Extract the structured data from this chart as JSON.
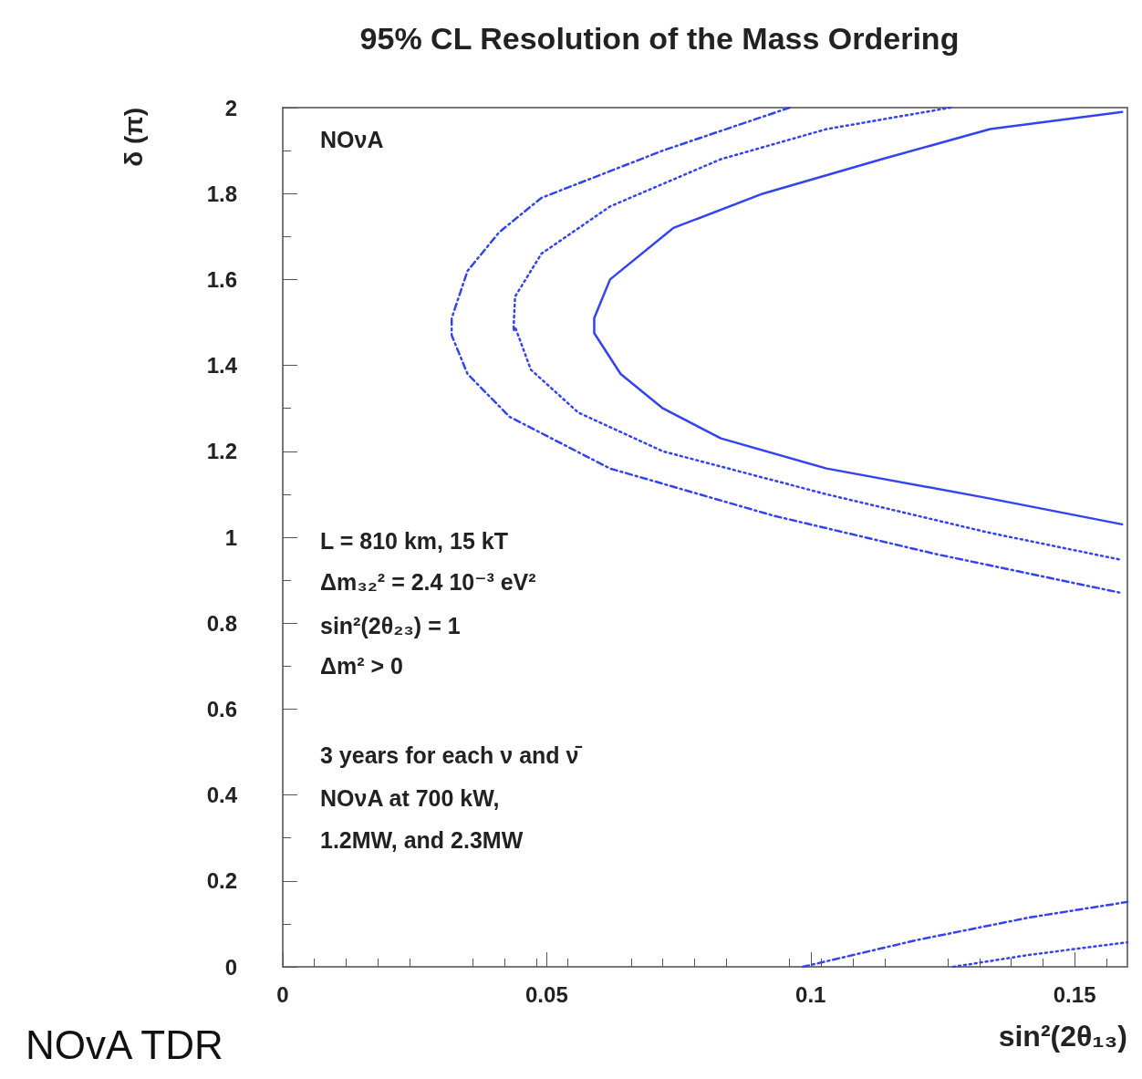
{
  "chart_data": {
    "type": "line",
    "title": "95% CL Resolution of the Mass Ordering",
    "xlabel": "sin²(2θ₁₃)",
    "ylabel": "δ (π)",
    "xlim": [
      0,
      0.16
    ],
    "xticks": [
      0,
      0.05,
      0.1,
      0.15
    ],
    "ylim": [
      0,
      2
    ],
    "yticks": [
      0,
      0.2,
      0.4,
      0.6,
      0.8,
      1,
      1.2,
      1.4,
      1.6,
      1.8,
      2
    ],
    "grid": false,
    "marker": "none",
    "annotations": [
      "NOνA",
      "L = 810 km, 15 kT",
      "Δm₃₂² = 2.4 10⁻³ eV²",
      "sin²(2θ₂₃) = 1",
      "Δm² > 0",
      "3 years for each ν and ν̄",
      "NOνA at 700 kW,",
      "1.2MW, and 2.3MW",
      "NOvA TDR"
    ],
    "series": [
      {
        "color": "#3344ee",
        "line_style": "solid",
        "x": [
          0.159,
          0.134,
          0.1135,
          0.091,
          0.074,
          0.062,
          0.059,
          0.059,
          0.064,
          0.072,
          0.083,
          0.103,
          0.134,
          0.159
        ],
        "values": [
          1.99,
          1.95,
          1.88,
          1.8,
          1.72,
          1.6,
          1.51,
          1.475,
          1.38,
          1.3,
          1.23,
          1.16,
          1.09,
          1.03
        ]
      },
      {
        "color": "#3344ee",
        "line_style": "dotted",
        "x": [
          0.1265,
          0.103,
          0.083,
          0.062,
          0.049,
          0.044,
          0.0437,
          0.044,
          0.047,
          0.056,
          0.072,
          0.103,
          0.134,
          0.159
        ],
        "values": [
          2,
          1.95,
          1.88,
          1.77,
          1.66,
          1.56,
          1.48,
          1.49,
          1.39,
          1.29,
          1.2,
          1.1,
          1.01,
          0.947
        ]
      },
      {
        "color": "#3344ee",
        "line_style": "dashed",
        "x": [
          0.096,
          0.072,
          0.049,
          0.041,
          0.035,
          0.032,
          0.032,
          0.035,
          0.043,
          0.062,
          0.093,
          0.124,
          0.159
        ],
        "values": [
          2,
          1.9,
          1.79,
          1.71,
          1.62,
          1.51,
          1.47,
          1.38,
          1.28,
          1.16,
          1.05,
          0.96,
          0.87
        ]
      },
      {
        "color": "#3344ee",
        "line_style": "dashed",
        "x": [
          0.0985,
          0.12,
          0.1415,
          0.16
        ],
        "values": [
          0,
          0.062,
          0.115,
          0.151
        ]
      },
      {
        "color": "#3344ee",
        "line_style": "dotted",
        "x": [
          0.127,
          0.1415,
          0.16
        ],
        "values": [
          0,
          0.028,
          0.057
        ]
      }
    ]
  }
}
